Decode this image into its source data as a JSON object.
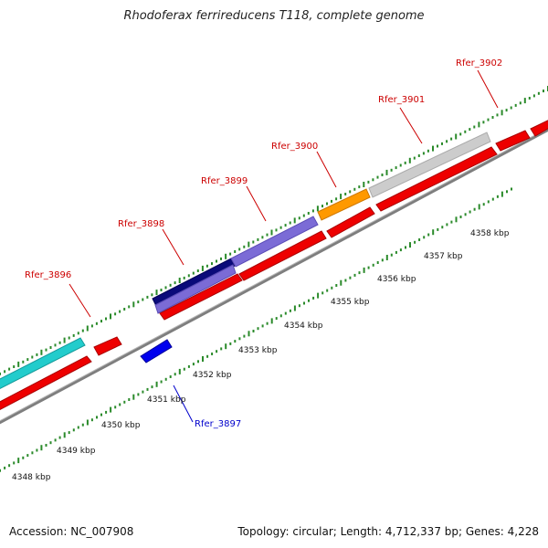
{
  "title": "Rhodoferax ferrireducens T118, complete genome",
  "footer": {
    "accession": "Accession: NC_007908",
    "summary": "Topology: circular; Length: 4,712,337 bp; Genes: 4,228"
  },
  "kbp_labels": [
    "4348 kbp",
    "4349 kbp",
    "4350 kbp",
    "4351 kbp",
    "4352 kbp",
    "4353 kbp",
    "4354 kbp",
    "4355 kbp",
    "4356 kbp",
    "4357 kbp",
    "4358 kbp"
  ],
  "gene_labels": [
    {
      "name": "Rfer_3896",
      "color": "#cc0000"
    },
    {
      "name": "Rfer_3897",
      "color": "#0000cc"
    },
    {
      "name": "Rfer_3898",
      "color": "#cc0000"
    },
    {
      "name": "Rfer_3899",
      "color": "#cc0000"
    },
    {
      "name": "Rfer_3900",
      "color": "#cc0000"
    },
    {
      "name": "Rfer_3901",
      "color": "#cc0000"
    },
    {
      "name": "Rfer_3902",
      "color": "#cc0000"
    }
  ],
  "colors": {
    "backbone": "#8a8a8a",
    "tick": "#2a8a2a",
    "red": "#ee0000",
    "cyan": "#22cccc",
    "navy": "#0a0a7a",
    "lavender": "#7b6bd6",
    "orange": "#ff9900",
    "grey": "#cccccc",
    "blue": "#0000ee"
  }
}
